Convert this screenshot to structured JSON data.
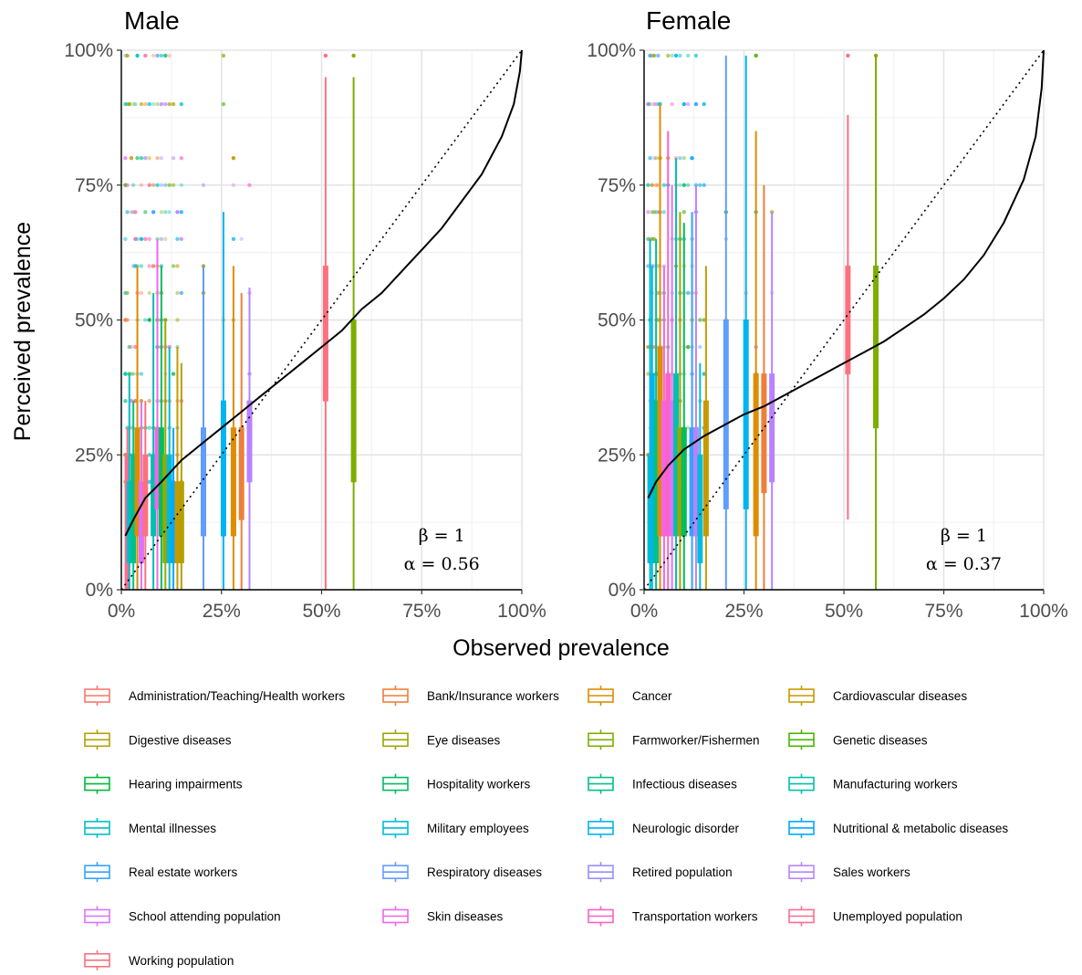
{
  "chart_data": {
    "type": "boxplot_scatter",
    "xlabel": "Observed prevalence",
    "ylabel": "Perceived prevalence",
    "xlim": [
      0,
      1
    ],
    "ylim": [
      0,
      1
    ],
    "x_ticks": [
      "0%",
      "25%",
      "50%",
      "75%",
      "100%"
    ],
    "y_ticks": [
      "0%",
      "25%",
      "50%",
      "75%",
      "100%"
    ],
    "grid": true,
    "reference_line": "identity (dotted)",
    "panels": [
      {
        "title": "Male",
        "beta_label": "β = 1",
        "alpha_label": "α = 0.56",
        "alpha": 0.56,
        "beta": 1,
        "fit_curve": [
          [
            0.01,
            0.1
          ],
          [
            0.03,
            0.13
          ],
          [
            0.06,
            0.17
          ],
          [
            0.1,
            0.2
          ],
          [
            0.15,
            0.24
          ],
          [
            0.2,
            0.27
          ],
          [
            0.25,
            0.3
          ],
          [
            0.3,
            0.33
          ],
          [
            0.35,
            0.36
          ],
          [
            0.4,
            0.39
          ],
          [
            0.45,
            0.42
          ],
          [
            0.5,
            0.45
          ],
          [
            0.55,
            0.48
          ],
          [
            0.6,
            0.52
          ],
          [
            0.65,
            0.55
          ],
          [
            0.7,
            0.59
          ],
          [
            0.75,
            0.63
          ],
          [
            0.8,
            0.67
          ],
          [
            0.85,
            0.72
          ],
          [
            0.9,
            0.77
          ],
          [
            0.95,
            0.84
          ],
          [
            0.98,
            0.9
          ],
          [
            0.995,
            0.96
          ],
          [
            1.0,
            1.0
          ]
        ],
        "boxes": [
          {
            "group": 23,
            "x": 0.015,
            "q1": 0.0,
            "median": 0.15,
            "q3": 0.25,
            "lo": 0.0,
            "hi": 0.3
          },
          {
            "group": 12,
            "x": 0.02,
            "q1": 0.05,
            "median": 0.12,
            "q3": 0.2,
            "lo": 0.0,
            "hi": 0.4
          },
          {
            "group": 10,
            "x": 0.03,
            "q1": 0.05,
            "median": 0.1,
            "q3": 0.25,
            "lo": 0.0,
            "hi": 0.35
          },
          {
            "group": 2,
            "x": 0.04,
            "q1": 0.1,
            "median": 0.2,
            "q3": 0.3,
            "lo": 0.0,
            "hi": 0.6
          },
          {
            "group": 20,
            "x": 0.05,
            "q1": 0.05,
            "median": 0.1,
            "q3": 0.2,
            "lo": 0.0,
            "hi": 0.35
          },
          {
            "group": 24,
            "x": 0.06,
            "q1": 0.1,
            "median": 0.15,
            "q3": 0.25,
            "lo": 0.0,
            "hi": 0.35
          },
          {
            "group": 11,
            "x": 0.08,
            "q1": 0.1,
            "median": 0.15,
            "q3": 0.25,
            "lo": 0.0,
            "hi": 0.55
          },
          {
            "group": 21,
            "x": 0.09,
            "q1": 0.15,
            "median": 0.2,
            "q3": 0.3,
            "lo": 0.0,
            "hi": 0.65
          },
          {
            "group": 9,
            "x": 0.1,
            "q1": 0.1,
            "median": 0.2,
            "q3": 0.3,
            "lo": 0.0,
            "hi": 0.6
          },
          {
            "group": 5,
            "x": 0.11,
            "q1": 0.05,
            "median": 0.12,
            "q3": 0.25,
            "lo": 0.0,
            "hi": 0.5
          },
          {
            "group": 13,
            "x": 0.12,
            "q1": 0.05,
            "median": 0.15,
            "q3": 0.25,
            "lo": 0.0,
            "hi": 0.45
          },
          {
            "group": 15,
            "x": 0.13,
            "q1": 0.05,
            "median": 0.12,
            "q3": 0.2,
            "lo": 0.0,
            "hi": 0.3
          },
          {
            "group": 3,
            "x": 0.14,
            "q1": 0.05,
            "median": 0.1,
            "q3": 0.2,
            "lo": 0.0,
            "hi": 0.45
          },
          {
            "group": 4,
            "x": 0.15,
            "q1": 0.05,
            "median": 0.1,
            "q3": 0.2,
            "lo": 0.0,
            "hi": 0.42
          },
          {
            "group": 17,
            "x": 0.205,
            "q1": 0.1,
            "median": 0.2,
            "q3": 0.3,
            "lo": 0.0,
            "hi": 0.6
          },
          {
            "group": 14,
            "x": 0.255,
            "q1": 0.1,
            "median": 0.25,
            "q3": 0.35,
            "lo": 0.0,
            "hi": 0.7
          },
          {
            "group": 2,
            "x": 0.28,
            "q1": 0.1,
            "median": 0.2,
            "q3": 0.3,
            "lo": 0.0,
            "hi": 0.6
          },
          {
            "group": 1,
            "x": 0.3,
            "q1": 0.13,
            "median": 0.25,
            "q3": 0.3,
            "lo": 0.0,
            "hi": 0.55
          },
          {
            "group": 19,
            "x": 0.32,
            "q1": 0.2,
            "median": 0.25,
            "q3": 0.35,
            "lo": 0.0,
            "hi": 0.56
          },
          {
            "group": 24,
            "x": 0.51,
            "q1": 0.35,
            "median": 0.45,
            "q3": 0.6,
            "lo": 0.0,
            "hi": 0.95
          },
          {
            "group": 6,
            "x": 0.58,
            "q1": 0.2,
            "median": 0.35,
            "q3": 0.5,
            "lo": 0.0,
            "hi": 0.95
          }
        ]
      },
      {
        "title": "Female",
        "beta_label": "β = 1",
        "alpha_label": "α = 0.37",
        "alpha": 0.37,
        "beta": 1,
        "fit_curve": [
          [
            0.01,
            0.17
          ],
          [
            0.03,
            0.2
          ],
          [
            0.06,
            0.23
          ],
          [
            0.1,
            0.26
          ],
          [
            0.15,
            0.285
          ],
          [
            0.2,
            0.305
          ],
          [
            0.25,
            0.325
          ],
          [
            0.3,
            0.34
          ],
          [
            0.35,
            0.36
          ],
          [
            0.4,
            0.38
          ],
          [
            0.45,
            0.4
          ],
          [
            0.5,
            0.42
          ],
          [
            0.55,
            0.44
          ],
          [
            0.6,
            0.46
          ],
          [
            0.65,
            0.485
          ],
          [
            0.7,
            0.51
          ],
          [
            0.75,
            0.54
          ],
          [
            0.8,
            0.575
          ],
          [
            0.85,
            0.62
          ],
          [
            0.9,
            0.68
          ],
          [
            0.95,
            0.76
          ],
          [
            0.98,
            0.84
          ],
          [
            0.995,
            0.93
          ],
          [
            1.0,
            1.0
          ]
        ],
        "boxes": [
          {
            "group": 12,
            "x": 0.015,
            "q1": 0.05,
            "median": 0.15,
            "q3": 0.25,
            "lo": 0.0,
            "hi": 0.65
          },
          {
            "group": 14,
            "x": 0.02,
            "q1": 0.05,
            "median": 0.2,
            "q3": 0.4,
            "lo": 0.0,
            "hi": 0.6
          },
          {
            "group": 10,
            "x": 0.03,
            "q1": 0.05,
            "median": 0.2,
            "q3": 0.35,
            "lo": 0.0,
            "hi": 0.65
          },
          {
            "group": 2,
            "x": 0.04,
            "q1": 0.1,
            "median": 0.25,
            "q3": 0.45,
            "lo": 0.0,
            "hi": 0.9
          },
          {
            "group": 21,
            "x": 0.05,
            "q1": 0.1,
            "median": 0.2,
            "q3": 0.35,
            "lo": 0.0,
            "hi": 0.6
          },
          {
            "group": 22,
            "x": 0.06,
            "q1": 0.1,
            "median": 0.2,
            "q3": 0.4,
            "lo": 0.0,
            "hi": 0.85
          },
          {
            "group": 20,
            "x": 0.07,
            "q1": 0.1,
            "median": 0.2,
            "q3": 0.35,
            "lo": 0.0,
            "hi": 0.75
          },
          {
            "group": 11,
            "x": 0.08,
            "q1": 0.1,
            "median": 0.2,
            "q3": 0.4,
            "lo": 0.0,
            "hi": 0.8
          },
          {
            "group": 5,
            "x": 0.09,
            "q1": 0.1,
            "median": 0.2,
            "q3": 0.3,
            "lo": 0.0,
            "hi": 0.7
          },
          {
            "group": 9,
            "x": 0.1,
            "q1": 0.1,
            "median": 0.2,
            "q3": 0.3,
            "lo": 0.0,
            "hi": 0.68
          },
          {
            "group": 16,
            "x": 0.12,
            "q1": 0.1,
            "median": 0.2,
            "q3": 0.3,
            "lo": 0.0,
            "hi": 0.7
          },
          {
            "group": 19,
            "x": 0.13,
            "q1": 0.1,
            "median": 0.2,
            "q3": 0.3,
            "lo": 0.0,
            "hi": 0.75
          },
          {
            "group": 13,
            "x": 0.14,
            "q1": 0.05,
            "median": 0.15,
            "q3": 0.25,
            "lo": 0.0,
            "hi": 0.42
          },
          {
            "group": 3,
            "x": 0.155,
            "q1": 0.1,
            "median": 0.2,
            "q3": 0.35,
            "lo": 0.0,
            "hi": 0.6
          },
          {
            "group": 17,
            "x": 0.205,
            "q1": 0.15,
            "median": 0.25,
            "q3": 0.5,
            "lo": 0.0,
            "hi": 0.99
          },
          {
            "group": 14,
            "x": 0.255,
            "q1": 0.15,
            "median": 0.3,
            "q3": 0.5,
            "lo": 0.0,
            "hi": 0.99
          },
          {
            "group": 2,
            "x": 0.28,
            "q1": 0.1,
            "median": 0.25,
            "q3": 0.4,
            "lo": 0.0,
            "hi": 0.85
          },
          {
            "group": 1,
            "x": 0.3,
            "q1": 0.18,
            "median": 0.28,
            "q3": 0.4,
            "lo": 0.0,
            "hi": 0.75
          },
          {
            "group": 19,
            "x": 0.32,
            "q1": 0.2,
            "median": 0.28,
            "q3": 0.4,
            "lo": 0.0,
            "hi": 0.7
          },
          {
            "group": 24,
            "x": 0.51,
            "q1": 0.4,
            "median": 0.5,
            "q3": 0.6,
            "lo": 0.13,
            "hi": 0.88
          },
          {
            "group": 6,
            "x": 0.58,
            "q1": 0.3,
            "median": 0.4,
            "q3": 0.6,
            "lo": 0.0,
            "hi": 0.99
          }
        ]
      }
    ],
    "legend": [
      {
        "label": "Administration/Teaching/Health workers",
        "color": "#F8766D"
      },
      {
        "label": "Bank/Insurance workers",
        "color": "#EE7F3B"
      },
      {
        "label": "Cancer",
        "color": "#DE8C00"
      },
      {
        "label": "Cardiovascular diseases",
        "color": "#C99800"
      },
      {
        "label": "Digestive diseases",
        "color": "#B4A000"
      },
      {
        "label": "Eye diseases",
        "color": "#9CA700"
      },
      {
        "label": "Farmworker/Fishermen",
        "color": "#7CAE00"
      },
      {
        "label": "Genetic diseases",
        "color": "#49B400"
      },
      {
        "label": "Hearing impairments",
        "color": "#00BA38"
      },
      {
        "label": "Hospitality workers",
        "color": "#00BD5F"
      },
      {
        "label": "Infectious diseases",
        "color": "#00C08B"
      },
      {
        "label": "Manufacturing workers",
        "color": "#00C0AF"
      },
      {
        "label": "Mental illnesses",
        "color": "#00BFC4"
      },
      {
        "label": "Military employees",
        "color": "#00BCD8"
      },
      {
        "label": "Neurologic disorder",
        "color": "#00B4EF"
      },
      {
        "label": "Nutritional & metabolic diseases",
        "color": "#00A9FF"
      },
      {
        "label": "Real estate workers",
        "color": "#35A2FF"
      },
      {
        "label": "Respiratory diseases",
        "color": "#619CFF"
      },
      {
        "label": "Retired population",
        "color": "#9590FF"
      },
      {
        "label": "Sales workers",
        "color": "#B983FF"
      },
      {
        "label": "School attending population",
        "color": "#DB72FB"
      },
      {
        "label": "Skin diseases",
        "color": "#F066EA"
      },
      {
        "label": "Transportation workers",
        "color": "#FF61C3"
      },
      {
        "label": "Unemployed population",
        "color": "#FF6C91"
      },
      {
        "label": "Working population",
        "color": "#FC717F"
      }
    ]
  }
}
